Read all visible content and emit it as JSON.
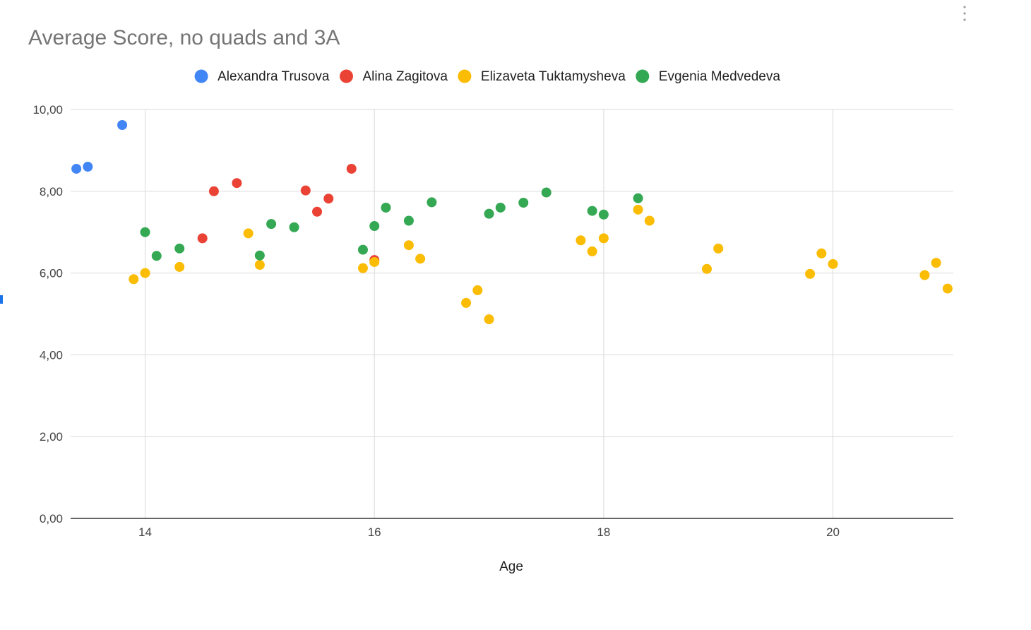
{
  "chart_data": {
    "type": "scatter",
    "title": "Average Score, no quads and 3A",
    "xlabel": "Age",
    "ylabel": "",
    "xlim": [
      13.35,
      21.05
    ],
    "ylim": [
      0,
      10
    ],
    "xticks": [
      14,
      16,
      18,
      20
    ],
    "xtick_labels": [
      "14",
      "16",
      "18",
      "20"
    ],
    "yticks": [
      0,
      2,
      4,
      6,
      8,
      10
    ],
    "ytick_labels": [
      "0,00",
      "2,00",
      "4,00",
      "6,00",
      "8,00",
      "10,00"
    ],
    "grid": true,
    "legend_position": "top",
    "series": [
      {
        "name": "Alexandra Trusova",
        "color": "#4285f4",
        "points": [
          [
            13.4,
            8.55
          ],
          [
            13.5,
            8.6
          ],
          [
            13.8,
            9.62
          ]
        ]
      },
      {
        "name": "Alina Zagitova",
        "color": "#ea4335",
        "points": [
          [
            14.5,
            6.85
          ],
          [
            14.6,
            8.0
          ],
          [
            14.8,
            8.2
          ],
          [
            15.4,
            8.02
          ],
          [
            15.5,
            7.5
          ],
          [
            15.6,
            7.82
          ],
          [
            15.8,
            8.55
          ],
          [
            16.0,
            6.32
          ]
        ]
      },
      {
        "name": "Elizaveta Tuktamysheva",
        "color": "#fbbc04",
        "points": [
          [
            13.9,
            5.85
          ],
          [
            14.0,
            6.0
          ],
          [
            14.3,
            6.15
          ],
          [
            14.9,
            6.97
          ],
          [
            15.0,
            6.2
          ],
          [
            15.9,
            6.12
          ],
          [
            16.0,
            6.27
          ],
          [
            16.3,
            6.68
          ],
          [
            16.4,
            6.35
          ],
          [
            16.8,
            5.27
          ],
          [
            16.9,
            5.58
          ],
          [
            17.0,
            4.87
          ],
          [
            17.8,
            6.8
          ],
          [
            17.9,
            6.53
          ],
          [
            18.0,
            6.85
          ],
          [
            18.3,
            7.55
          ],
          [
            18.4,
            7.28
          ],
          [
            18.9,
            6.1
          ],
          [
            19.0,
            6.6
          ],
          [
            19.8,
            5.98
          ],
          [
            19.9,
            6.48
          ],
          [
            20.0,
            6.22
          ],
          [
            20.8,
            5.95
          ],
          [
            20.9,
            6.25
          ],
          [
            21.0,
            5.62
          ]
        ]
      },
      {
        "name": "Evgenia Medvedeva",
        "color": "#34a853",
        "points": [
          [
            14.0,
            7.0
          ],
          [
            14.1,
            6.42
          ],
          [
            14.3,
            6.6
          ],
          [
            15.0,
            6.43
          ],
          [
            15.1,
            7.2
          ],
          [
            15.3,
            7.12
          ],
          [
            15.9,
            6.57
          ],
          [
            16.0,
            7.15
          ],
          [
            16.1,
            7.6
          ],
          [
            16.3,
            7.28
          ],
          [
            16.5,
            7.73
          ],
          [
            17.0,
            7.45
          ],
          [
            17.1,
            7.6
          ],
          [
            17.3,
            7.72
          ],
          [
            17.5,
            7.97
          ],
          [
            17.9,
            7.52
          ],
          [
            18.0,
            7.43
          ],
          [
            18.3,
            7.83
          ]
        ]
      }
    ]
  },
  "icons": {
    "menu": "more-vert-icon"
  }
}
